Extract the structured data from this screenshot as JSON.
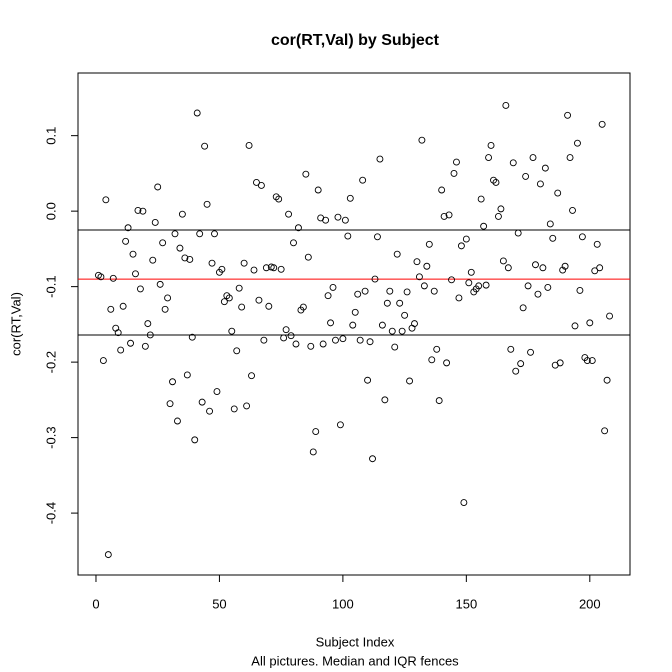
{
  "chart_data": {
    "type": "scatter",
    "title": "cor(RT,Val) by Subject",
    "x_label": "Subject Index",
    "subtitle": "All pictures. Median and IQR fences",
    "y_label": "cor(RT,Val)",
    "xlim": [
      -7.28,
      216.28
    ],
    "ylim": [
      -0.482,
      0.183
    ],
    "xticks": [
      0,
      50,
      100,
      150,
      200
    ],
    "yticks": [
      -0.4,
      -0.3,
      -0.2,
      -0.1,
      {
        "value": 0,
        "label": "0.0"
      },
      0.1
    ],
    "hlines": [
      {
        "value": -0.025,
        "color": "#000000"
      },
      {
        "value": -0.09,
        "color": "#ff0000"
      },
      {
        "value": -0.164,
        "color": "#000000"
      }
    ],
    "point_color": "#000000",
    "x": [
      1,
      2,
      3,
      4,
      5,
      6,
      7,
      8,
      9,
      10,
      11,
      12,
      13,
      14,
      15,
      16,
      17,
      18,
      19,
      20,
      21,
      22,
      23,
      24,
      25,
      26,
      27,
      28,
      29,
      30,
      31,
      32,
      33,
      34,
      35,
      36,
      37,
      38,
      39,
      40,
      41,
      42,
      43,
      44,
      45,
      46,
      47,
      48,
      49,
      50,
      51,
      52,
      53,
      54,
      55,
      56,
      57,
      58,
      59,
      60,
      61,
      62,
      63,
      64,
      65,
      66,
      67,
      68,
      69,
      70,
      71,
      72,
      73,
      74,
      75,
      76,
      77,
      78,
      79,
      80,
      81,
      82,
      83,
      84,
      85,
      86,
      87,
      88,
      89,
      90,
      91,
      92,
      93,
      94,
      95,
      96,
      97,
      98,
      99,
      100,
      101,
      102,
      103,
      104,
      105,
      106,
      107,
      108,
      109,
      110,
      111,
      112,
      113,
      114,
      115,
      116,
      117,
      118,
      119,
      120,
      121,
      122,
      123,
      124,
      125,
      126,
      127,
      128,
      129,
      130,
      131,
      132,
      133,
      134,
      135,
      136,
      137,
      138,
      139,
      140,
      141,
      142,
      143,
      144,
      145,
      146,
      147,
      148,
      149,
      150,
      151,
      152,
      153,
      154,
      155,
      156,
      157,
      158,
      159,
      160,
      161,
      162,
      163,
      164,
      165,
      166,
      167,
      168,
      169,
      170,
      171,
      172,
      173,
      174,
      175,
      176,
      177,
      178,
      179,
      180,
      181,
      182,
      183,
      184,
      185,
      186,
      187,
      188,
      189,
      190,
      191,
      192,
      193,
      194,
      195,
      196,
      197,
      198,
      199,
      200,
      201,
      202,
      203,
      204,
      205,
      206,
      207,
      208
    ],
    "values": [
      -0.085,
      -0.087,
      -0.198,
      0.015,
      -0.455,
      -0.13,
      -0.089,
      -0.155,
      -0.161,
      -0.184,
      -0.126,
      -0.04,
      -0.022,
      -0.175,
      -0.057,
      -0.083,
      0.001,
      -0.103,
      0.0,
      -0.179,
      -0.149,
      -0.164,
      -0.065,
      -0.015,
      0.032,
      -0.097,
      -0.042,
      -0.13,
      -0.115,
      -0.255,
      -0.226,
      -0.03,
      -0.278,
      -0.049,
      -0.004,
      -0.062,
      -0.217,
      -0.064,
      -0.167,
      -0.303,
      0.13,
      -0.03,
      -0.253,
      0.086,
      0.009,
      -0.265,
      -0.069,
      -0.03,
      -0.239,
      -0.081,
      -0.077,
      -0.12,
      -0.112,
      -0.115,
      -0.159,
      -0.262,
      -0.185,
      -0.102,
      -0.127,
      -0.069,
      -0.258,
      0.087,
      -0.218,
      -0.078,
      0.038,
      -0.118,
      0.034,
      -0.171,
      -0.075,
      -0.126,
      -0.074,
      -0.075,
      0.019,
      0.016,
      -0.077,
      -0.168,
      -0.157,
      -0.004,
      -0.165,
      -0.042,
      -0.176,
      -0.022,
      -0.131,
      -0.127,
      0.049,
      -0.061,
      -0.179,
      -0.319,
      -0.292,
      0.028,
      -0.009,
      -0.176,
      -0.012,
      -0.112,
      -0.148,
      -0.101,
      -0.171,
      -0.008,
      -0.283,
      -0.169,
      -0.012,
      -0.033,
      0.017,
      -0.151,
      -0.134,
      -0.11,
      -0.171,
      0.041,
      -0.106,
      -0.224,
      -0.173,
      -0.328,
      -0.09,
      -0.034,
      0.069,
      -0.151,
      -0.25,
      -0.122,
      -0.106,
      -0.159,
      -0.18,
      -0.057,
      -0.122,
      -0.159,
      -0.138,
      -0.107,
      -0.225,
      -0.155,
      -0.149,
      -0.067,
      -0.087,
      0.094,
      -0.099,
      -0.073,
      -0.044,
      -0.197,
      -0.106,
      -0.183,
      -0.251,
      0.028,
      -0.007,
      -0.201,
      -0.005,
      -0.091,
      0.05,
      0.065,
      -0.115,
      -0.046,
      -0.386,
      -0.037,
      -0.095,
      -0.081,
      -0.107,
      -0.103,
      -0.099,
      0.016,
      -0.02,
      -0.098,
      0.071,
      0.087,
      0.041,
      0.038,
      -0.007,
      0.003,
      -0.066,
      0.14,
      -0.075,
      -0.183,
      0.064,
      -0.212,
      -0.029,
      -0.202,
      -0.128,
      0.046,
      -0.099,
      -0.187,
      0.071,
      -0.071,
      -0.11,
      0.036,
      -0.075,
      0.057,
      -0.101,
      -0.017,
      -0.036,
      -0.204,
      0.024,
      -0.201,
      -0.078,
      -0.073,
      0.127,
      0.071,
      0.001,
      -0.152,
      0.09,
      -0.105,
      -0.034,
      -0.194,
      -0.198,
      -0.148,
      -0.198,
      -0.079,
      -0.044,
      -0.075,
      0.115,
      -0.291,
      -0.224,
      -0.139
    ]
  }
}
